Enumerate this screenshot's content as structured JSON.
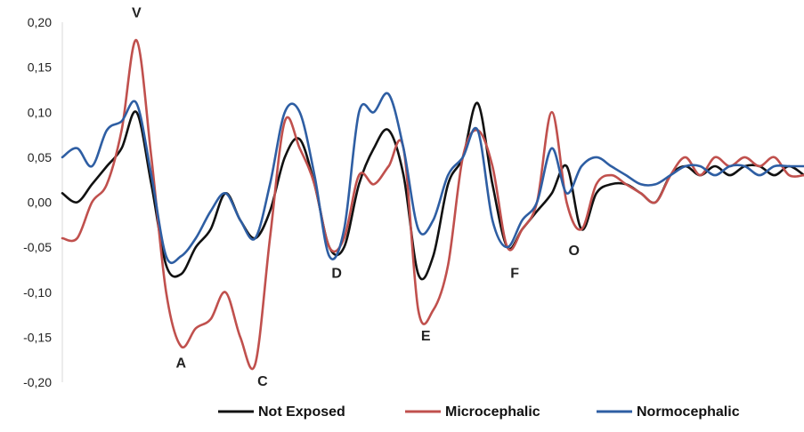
{
  "chart_data": {
    "type": "line",
    "title": "",
    "xlabel": "",
    "ylabel": "",
    "ylim": [
      -0.2,
      0.2
    ],
    "yticks": [
      "0,20",
      "0,15",
      "0,10",
      "0,05",
      "0,00",
      "-0,05",
      "-0,10",
      "-0,15",
      "-0,20"
    ],
    "grid": false,
    "legend_position": "bottom",
    "xrange": [
      0,
      100
    ],
    "series": [
      {
        "name": "Not Exposed",
        "color": "#111111",
        "x": [
          0,
          2,
          4,
          6,
          8,
          10,
          12,
          14,
          16,
          18,
          20,
          22,
          24,
          26,
          28,
          30,
          32,
          34,
          36,
          38,
          40,
          42,
          44,
          46,
          48,
          50,
          52,
          54,
          56,
          58,
          60,
          62,
          64,
          66,
          68,
          70,
          72,
          74,
          76,
          78,
          80,
          82,
          84,
          86,
          88,
          90,
          92,
          94,
          96,
          98,
          100
        ],
        "y": [
          0.01,
          0.0,
          0.02,
          0.04,
          0.06,
          0.1,
          0.02,
          -0.07,
          -0.08,
          -0.05,
          -0.03,
          0.01,
          -0.02,
          -0.04,
          -0.01,
          0.05,
          0.07,
          0.02,
          -0.05,
          -0.05,
          0.02,
          0.06,
          0.08,
          0.03,
          -0.08,
          -0.06,
          0.02,
          0.05,
          0.11,
          0.02,
          -0.05,
          -0.03,
          -0.01,
          0.01,
          0.04,
          -0.03,
          0.01,
          0.02,
          0.02,
          0.01,
          0.0,
          0.03,
          0.04,
          0.03,
          0.04,
          0.03,
          0.04,
          0.04,
          0.03,
          0.04,
          0.03
        ]
      },
      {
        "name": "Microcephalic",
        "color": "#c0504d",
        "x": [
          0,
          2,
          4,
          6,
          8,
          10,
          12,
          14,
          16,
          18,
          20,
          22,
          24,
          26,
          28,
          30,
          32,
          34,
          36,
          38,
          40,
          42,
          44,
          46,
          48,
          50,
          52,
          54,
          56,
          58,
          60,
          62,
          64,
          66,
          68,
          70,
          72,
          74,
          76,
          78,
          80,
          82,
          84,
          86,
          88,
          90,
          92,
          94,
          96,
          98,
          100
        ],
        "y": [
          -0.04,
          -0.04,
          0.0,
          0.02,
          0.08,
          0.18,
          0.05,
          -0.1,
          -0.16,
          -0.14,
          -0.13,
          -0.1,
          -0.15,
          -0.18,
          -0.04,
          0.09,
          0.06,
          0.02,
          -0.05,
          -0.04,
          0.03,
          0.02,
          0.04,
          0.06,
          -0.12,
          -0.12,
          -0.07,
          0.05,
          0.08,
          0.04,
          -0.05,
          -0.03,
          0.0,
          0.1,
          0.0,
          -0.03,
          0.02,
          0.03,
          0.02,
          0.01,
          0.0,
          0.03,
          0.05,
          0.03,
          0.05,
          0.04,
          0.05,
          0.04,
          0.05,
          0.03,
          0.03
        ]
      },
      {
        "name": "Normocephalic",
        "color": "#2e5ea3",
        "x": [
          0,
          2,
          4,
          6,
          8,
          10,
          12,
          14,
          16,
          18,
          20,
          22,
          24,
          26,
          28,
          30,
          32,
          34,
          36,
          38,
          40,
          42,
          44,
          46,
          48,
          50,
          52,
          54,
          56,
          58,
          60,
          62,
          64,
          66,
          68,
          70,
          72,
          74,
          76,
          78,
          80,
          82,
          84,
          86,
          88,
          90,
          92,
          94,
          96,
          98,
          100
        ],
        "y": [
          0.05,
          0.06,
          0.04,
          0.08,
          0.09,
          0.11,
          0.03,
          -0.06,
          -0.06,
          -0.04,
          -0.01,
          0.01,
          -0.02,
          -0.04,
          0.02,
          0.1,
          0.1,
          0.03,
          -0.06,
          -0.03,
          0.1,
          0.1,
          0.12,
          0.06,
          -0.03,
          -0.02,
          0.03,
          0.05,
          0.08,
          -0.02,
          -0.05,
          -0.02,
          0.0,
          0.06,
          0.01,
          0.04,
          0.05,
          0.04,
          0.03,
          0.02,
          0.02,
          0.03,
          0.04,
          0.04,
          0.03,
          0.04,
          0.04,
          0.03,
          0.04,
          0.04,
          0.04
        ]
      }
    ],
    "annotations": [
      {
        "text": "V",
        "x": 10,
        "y": 0.18
      },
      {
        "text": "A",
        "x": 16,
        "y": -0.16
      },
      {
        "text": "C",
        "x": 27,
        "y": -0.18
      },
      {
        "text": "D",
        "x": 37,
        "y": -0.06
      },
      {
        "text": "E",
        "x": 49,
        "y": -0.13
      },
      {
        "text": "F",
        "x": 61,
        "y": -0.06
      },
      {
        "text": "O",
        "x": 69,
        "y": -0.035
      }
    ]
  }
}
